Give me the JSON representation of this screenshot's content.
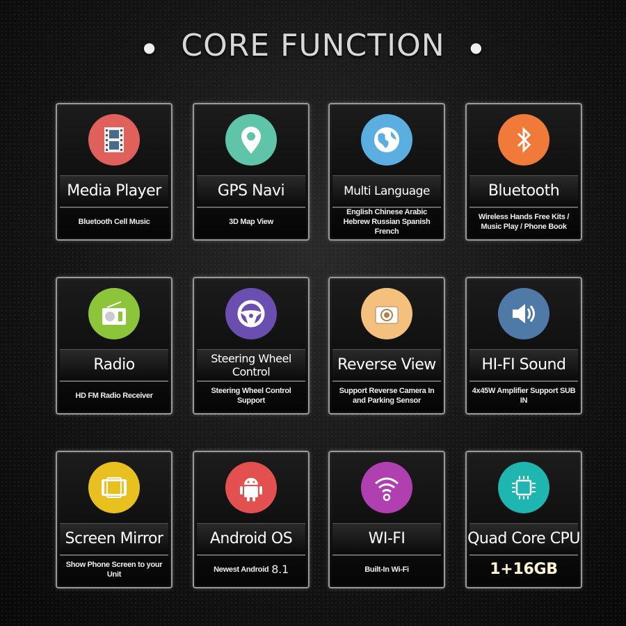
{
  "title": "CORE FUNCTION",
  "cards": [
    {
      "name": "Media Player",
      "sub": "Bluetooth Cell Music",
      "icon": "film-icon",
      "color": "#e0605c"
    },
    {
      "name": "GPS Navi",
      "sub": "3D Map View",
      "icon": "map-pin-icon",
      "color": "#5fc4a8"
    },
    {
      "name": "Multi Language",
      "sub": "English Chinese Arabic Hebrew Russian Spanish French",
      "icon": "globe-icon",
      "color": "#5aaee0"
    },
    {
      "name": "Bluetooth",
      "sub": "Wireless Hands Free Kits / Music Play / Phone Book",
      "icon": "bluetooth-icon",
      "color": "#f07a3a"
    },
    {
      "name": "Radio",
      "sub": "HD FM Radio Receiver",
      "icon": "radio-icon",
      "color": "#8cc43a"
    },
    {
      "name": "Steering Wheel Control",
      "sub": "Steering Wheel Control Support",
      "icon": "steering-wheel-icon",
      "color": "#6a4fb0"
    },
    {
      "name": "Reverse View",
      "sub": "Support Reverse Camera In and Parking Sensor",
      "icon": "camera-icon",
      "color": "#f3c07e"
    },
    {
      "name": "HI-FI Sound",
      "sub": "4x45W Amplifier Support SUB IN",
      "icon": "speaker-icon",
      "color": "#4f7aa8"
    },
    {
      "name": "Screen Mirror",
      "sub": "Show Phone Screen to your Unit",
      "icon": "phone-mirror-icon",
      "color": "#e8c020"
    },
    {
      "name": "Android OS",
      "sub": "Newest Android",
      "version": "8.1",
      "icon": "android-icon",
      "color": "#e35050"
    },
    {
      "name": "WI-FI",
      "sub": "Built-In Wi-Fi",
      "icon": "wifi-icon",
      "color": "#b040b0"
    },
    {
      "name": "Quad Core CPU",
      "sub": "1+16GB",
      "icon": "cpu-chip-icon",
      "color": "#1fb5b0"
    }
  ]
}
